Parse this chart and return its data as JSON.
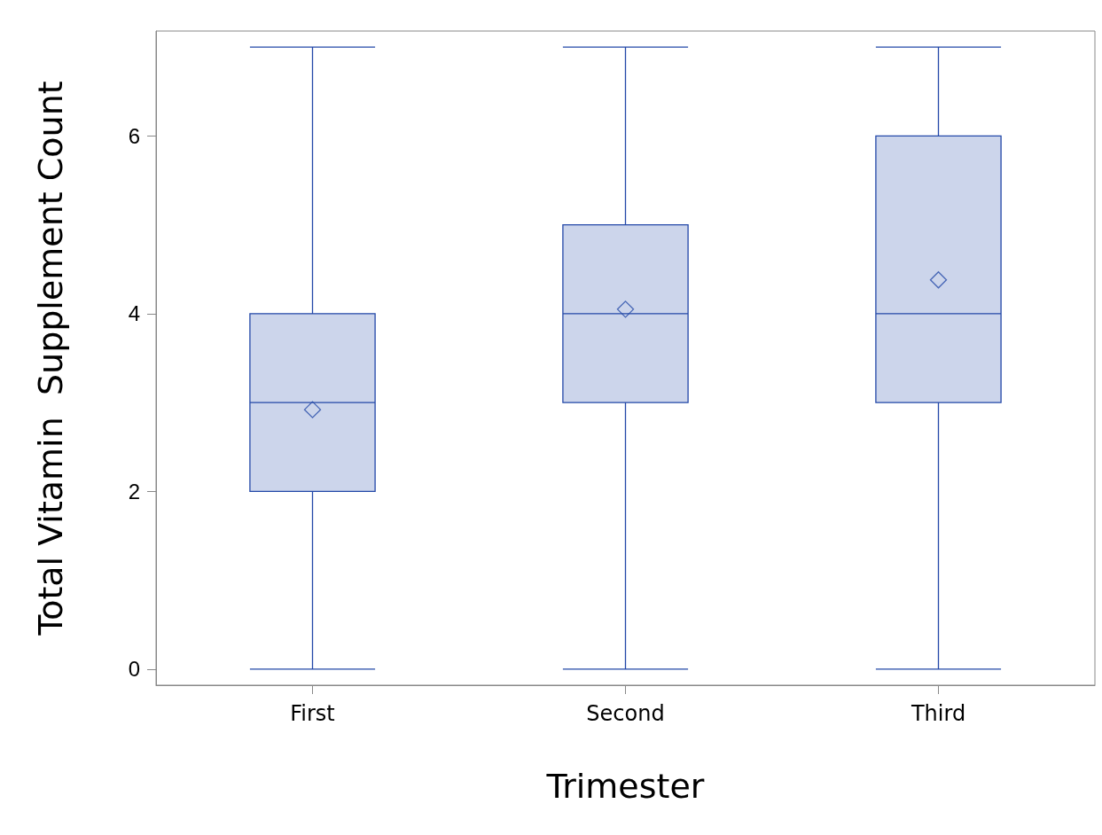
{
  "chart_data": {
    "type": "box",
    "xlabel": "Trimester",
    "ylabel": "Total Vitamin  Supplement Count",
    "categories": [
      "First",
      "Second",
      "Third"
    ],
    "series": [
      {
        "color": "#2348a8",
        "boxes": [
          {
            "low": 0,
            "q1": 2,
            "median": 3,
            "q3": 4,
            "high": 7,
            "mean": 2.92
          },
          {
            "low": 0,
            "q1": 3,
            "median": 4,
            "q3": 5,
            "high": 7,
            "mean": 4.05
          },
          {
            "low": 0,
            "q1": 3,
            "median": 4,
            "q3": 6,
            "high": 7,
            "mean": 4.38
          }
        ]
      }
    ],
    "ylim": [
      -0.18,
      7.18
    ],
    "yticks": [
      0,
      2,
      4,
      6
    ],
    "marker": "diamond"
  }
}
